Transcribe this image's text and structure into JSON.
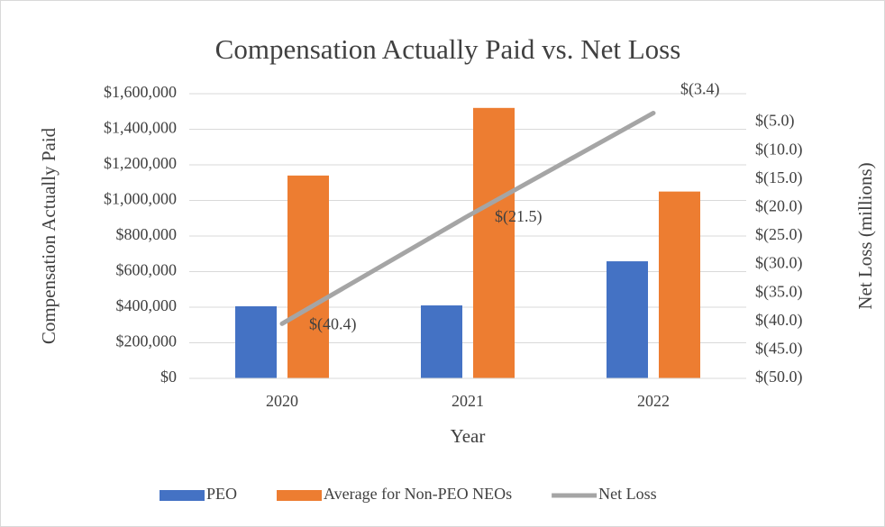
{
  "chart_data": {
    "type": "bar_line",
    "title": "Compensation Actually Paid vs. Net Loss",
    "xlabel": "Year",
    "ylabel": "Compensation Actually Paid",
    "y2label": "Net Loss (millions)",
    "categories": [
      "2020",
      "2021",
      "2022"
    ],
    "series": [
      {
        "name": "PEO",
        "type": "bar",
        "color": "#4472c4",
        "values": [
          405000,
          410000,
          658000
        ]
      },
      {
        "name": "Average for Non-PEO NEOs",
        "type": "bar",
        "color": "#ed7d31",
        "values": [
          1140000,
          1520000,
          1050000
        ]
      },
      {
        "name": "Net Loss",
        "type": "line",
        "axis": "y2",
        "color": "#a5a5a5",
        "values": [
          -40.4,
          -21.5,
          -3.4
        ],
        "value_labels": [
          "$(40.4)",
          "$(21.5)",
          "$(3.4)"
        ]
      }
    ],
    "ylim": [
      0,
      1600000
    ],
    "yticks": [
      {
        "value": 0,
        "label": "$0"
      },
      {
        "value": 200000,
        "label": "$200,000"
      },
      {
        "value": 400000,
        "label": "$400,000"
      },
      {
        "value": 600000,
        "label": "$600,000"
      },
      {
        "value": 800000,
        "label": "$800,000"
      },
      {
        "value": 1000000,
        "label": "$1,000,000"
      },
      {
        "value": 1200000,
        "label": "$1,200,000"
      },
      {
        "value": 1400000,
        "label": "$1,400,000"
      },
      {
        "value": 1600000,
        "label": "$1,600,000"
      }
    ],
    "y2lim": [
      -50,
      0
    ],
    "y2ticks": [
      {
        "value": -50,
        "label": "$(50.0)"
      },
      {
        "value": -45,
        "label": "$(45.0)"
      },
      {
        "value": -40,
        "label": "$(40.0)"
      },
      {
        "value": -35,
        "label": "$(35.0)"
      },
      {
        "value": -30,
        "label": "$(30.0)"
      },
      {
        "value": -25,
        "label": "$(25.0)"
      },
      {
        "value": -20,
        "label": "$(20.0)"
      },
      {
        "value": -15,
        "label": "$(15.0)"
      },
      {
        "value": -10,
        "label": "$(10.0)"
      },
      {
        "value": -5,
        "label": "$(5.0)"
      }
    ],
    "grid": true,
    "legend": "bottom"
  }
}
